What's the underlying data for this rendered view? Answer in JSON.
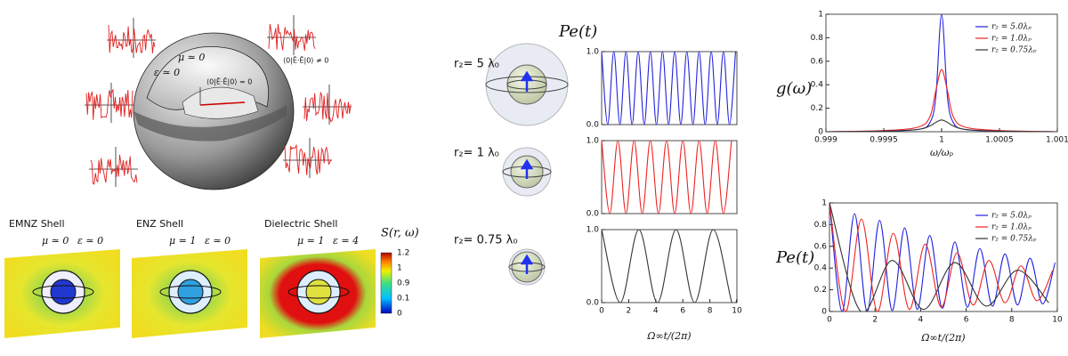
{
  "illustration": {
    "mu": "μ ≃ 0",
    "eps": "ε ≃ 0",
    "inside": "⟨0|Ê·Ê|0⟩ = 0",
    "outside": "⟨0|Ê·Ê|0⟩ ≠ 0"
  },
  "shells": [
    {
      "title": "EMNZ Shell",
      "mu": "μ ≃ 0",
      "eps": "ε ≃ 0"
    },
    {
      "title": "ENZ Shell",
      "mu": "μ = 1",
      "eps": "ε ≃ 0"
    },
    {
      "title": "Dielectric Shell",
      "mu": "μ = 1",
      "eps": "ε = 4"
    }
  ],
  "colorbar": {
    "label": "S(r, ω)",
    "ticks": [
      "1.2",
      "1",
      "0.9",
      "0.1",
      "0"
    ]
  },
  "middle_panel": {
    "title": "Pe(t)"
  },
  "chart_data": [
    {
      "type": "line",
      "title": "r₂= 5 λ₀",
      "xlim": [
        0,
        10
      ],
      "ylim": [
        0,
        1
      ],
      "yticks": [
        {
          "value": 0,
          "label": "0.0"
        },
        {
          "value": 1,
          "label": "1.0"
        }
      ],
      "series": [
        {
          "color": "#2222dd",
          "x": [
            0,
            0.45,
            0.9,
            1.35,
            1.8,
            2.25,
            2.7,
            3.15,
            3.6,
            4.05,
            4.5,
            4.95,
            5.4,
            5.85,
            6.3,
            6.75,
            7.2,
            7.65,
            8.1,
            8.55,
            9.0,
            9.45,
            9.9
          ],
          "values": [
            1,
            0,
            1,
            0,
            1,
            0,
            1,
            0,
            1,
            0,
            1,
            0,
            1,
            0,
            1,
            0,
            1,
            0,
            1,
            0,
            1,
            0,
            1
          ]
        }
      ]
    },
    {
      "type": "line",
      "title": "r₂= 1 λ₀",
      "xlim": [
        0,
        10
      ],
      "ylim": [
        0,
        1
      ],
      "yticks": [
        {
          "value": 0,
          "label": "0.0"
        },
        {
          "value": 1,
          "label": "1.0"
        }
      ],
      "series": [
        {
          "color": "#ee2222",
          "x": [
            0,
            0.6,
            1.2,
            1.8,
            2.4,
            3.0,
            3.6,
            4.2,
            4.8,
            5.4,
            6.0,
            6.6,
            7.2,
            7.8,
            8.4,
            9.0,
            9.6
          ],
          "values": [
            1,
            0,
            1,
            0,
            1,
            0,
            1,
            0,
            1,
            0,
            1,
            0,
            1,
            0,
            1,
            0,
            1
          ]
        }
      ]
    },
    {
      "type": "line",
      "title": "r₂= 0.75 λ₀",
      "xlim": [
        0,
        10
      ],
      "ylim": [
        0,
        1
      ],
      "yticks": [
        {
          "value": 0,
          "label": "0.0"
        },
        {
          "value": 1,
          "label": "1.0"
        }
      ],
      "xticks": [
        0,
        2,
        4,
        6,
        8,
        10
      ],
      "xlabel": "Ω∞t/(2π)",
      "series": [
        {
          "color": "#333333",
          "x": [
            0,
            1.375,
            2.75,
            4.125,
            5.5,
            6.875,
            8.25,
            9.625,
            10
          ],
          "values": [
            1,
            0,
            1,
            0,
            1,
            0,
            1,
            0,
            0.05
          ]
        }
      ]
    },
    {
      "type": "line",
      "ylabel": "g(ω)",
      "xlabel": "ω/ωₚ",
      "xlim": [
        0.999,
        1.001
      ],
      "ylim": [
        0,
        1
      ],
      "xticks": [
        0.999,
        0.9995,
        1,
        1.0005,
        1.001
      ],
      "yticks": [
        0,
        0.2,
        0.4,
        0.6,
        0.8,
        1
      ],
      "legend": "upper right",
      "series": [
        {
          "name": "r₂ =  5.0λₚ",
          "color": "#2222dd",
          "x": [
            0.999,
            0.9995,
            0.9998,
            0.9999,
            0.99995,
            1,
            1.00005,
            1.0001,
            1.0002,
            1.0005,
            1.001
          ],
          "values": [
            0,
            0.005,
            0.02,
            0.08,
            0.3,
            1,
            0.3,
            0.08,
            0.02,
            0.005,
            0
          ]
        },
        {
          "name": "r₂ =  1.0λₚ",
          "color": "#ee2222",
          "x": [
            0.999,
            0.9995,
            0.9998,
            0.9999,
            0.99995,
            1,
            1.00005,
            1.0001,
            1.0002,
            1.0005,
            1.001
          ],
          "values": [
            0,
            0.01,
            0.04,
            0.13,
            0.35,
            0.53,
            0.35,
            0.13,
            0.04,
            0.01,
            0
          ]
        },
        {
          "name": "r₂ =  0.75λₚ",
          "color": "#333333",
          "x": [
            0.999,
            0.9995,
            0.9998,
            0.9999,
            0.99995,
            1,
            1.00005,
            1.0001,
            1.0002,
            1.0005,
            1.001
          ],
          "values": [
            0,
            0.005,
            0.02,
            0.05,
            0.08,
            0.1,
            0.08,
            0.05,
            0.02,
            0.005,
            0
          ]
        }
      ]
    },
    {
      "type": "line",
      "ylabel": "Pe(t)",
      "xlabel": "Ω∞t/(2π)",
      "xlim": [
        0,
        10
      ],
      "ylim": [
        0,
        1
      ],
      "xticks": [
        0,
        2,
        4,
        6,
        8,
        10
      ],
      "yticks": [
        0,
        0.2,
        0.4,
        0.6,
        0.8,
        1
      ],
      "legend": "upper right",
      "series": [
        {
          "name": "r₂ =  5.0λₚ",
          "color": "#2222dd",
          "x": [
            0,
            0.55,
            1.1,
            1.65,
            2.2,
            2.75,
            3.3,
            3.85,
            4.4,
            4.95,
            5.5,
            6.05,
            6.6,
            7.15,
            7.7,
            8.25,
            8.8,
            9.35,
            9.9
          ],
          "values": [
            1,
            0,
            0.9,
            0,
            0.84,
            0.01,
            0.77,
            0.02,
            0.7,
            0.03,
            0.64,
            0.04,
            0.58,
            0.05,
            0.53,
            0.06,
            0.49,
            0.07,
            0.45
          ]
        },
        {
          "name": "r₂ =  1.0λₚ",
          "color": "#ee2222",
          "x": [
            0,
            0.7,
            1.4,
            2.1,
            2.8,
            3.5,
            4.2,
            4.9,
            5.6,
            6.3,
            7.0,
            7.7,
            8.4,
            9.1,
            9.8
          ],
          "values": [
            1,
            0,
            0.85,
            0,
            0.72,
            0.02,
            0.62,
            0.04,
            0.54,
            0.06,
            0.47,
            0.08,
            0.42,
            0.1,
            0.38
          ]
        },
        {
          "name": "r₂ =  0.75λₚ",
          "color": "#333333",
          "x": [
            0,
            1.375,
            2.75,
            4.125,
            5.5,
            6.875,
            8.25,
            9.625
          ],
          "values": [
            1,
            0,
            0.47,
            0.02,
            0.45,
            0.05,
            0.38,
            0.08
          ]
        }
      ]
    }
  ]
}
